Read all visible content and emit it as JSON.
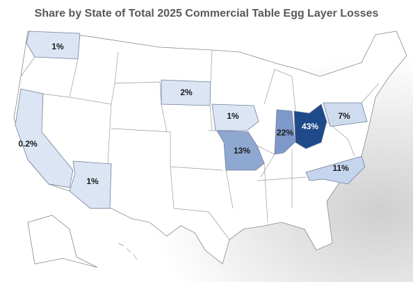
{
  "chart_data": {
    "type": "choropleth",
    "title": "Share by State of Total 2025 Commercial Table Egg Layer Losses",
    "values": [
      1,
      2,
      1,
      0.2,
      13,
      1,
      22,
      43,
      7,
      11
    ],
    "value_labels": [
      "1%",
      "2%",
      "1%",
      "0.2%",
      "13%",
      "1%",
      "22%",
      "43%",
      "7%",
      "11%"
    ],
    "colors": [
      "#dbe5f4",
      "#dbe5f4",
      "#dbe5f4",
      "#dbe5f4",
      "#8fa8d2",
      "#dbe5f4",
      "#7d98c9",
      "#1f4a8a",
      "#cfdcf0",
      "#c6d5ee"
    ]
  }
}
